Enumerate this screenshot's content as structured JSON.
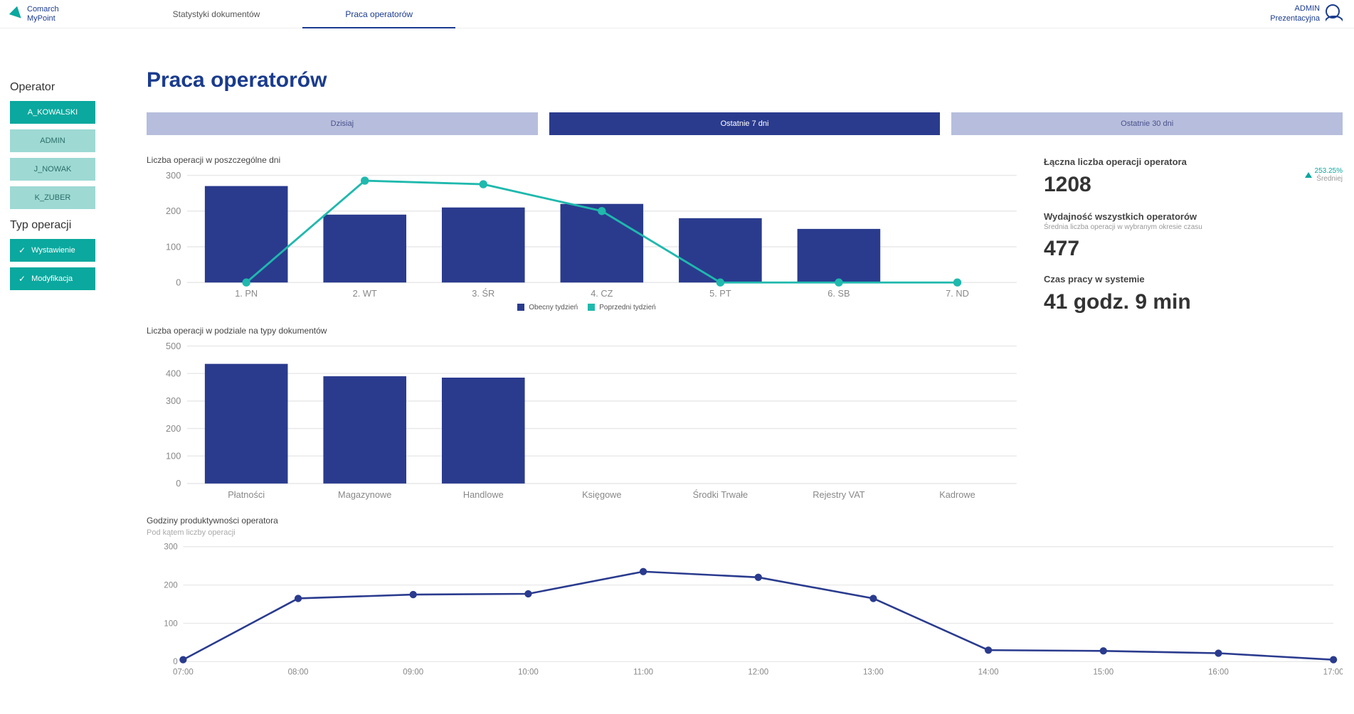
{
  "header": {
    "logo_line1": "Comarch",
    "logo_line2": "MyPoint",
    "tabs": [
      {
        "label": "Statystyki dokumentów",
        "active": false
      },
      {
        "label": "Praca operatorów",
        "active": true
      }
    ],
    "user_line1": "ADMIN",
    "user_line2": "Prezentacyjna"
  },
  "sidebar": {
    "operator_title": "Operator",
    "operators": [
      {
        "label": "A_KOWALSKI",
        "selected": true
      },
      {
        "label": "ADMIN",
        "selected": false
      },
      {
        "label": "J_NOWAK",
        "selected": false
      },
      {
        "label": "K_ZUBER",
        "selected": false
      }
    ],
    "op_type_title": "Typ operacji",
    "op_types": [
      {
        "label": "Wystawienie",
        "selected": true
      },
      {
        "label": "Modyfikacja",
        "selected": true
      }
    ]
  },
  "page": {
    "title": "Praca operatorów",
    "periods": [
      {
        "label": "Dzisiaj",
        "active": false
      },
      {
        "label": "Ostatnie 7 dni",
        "active": true
      },
      {
        "label": "Ostatnie 30 dni",
        "active": false
      }
    ]
  },
  "colors": {
    "bar": "#2a3b8e",
    "line_green": "#1fb9ad",
    "line_blue": "#2a3b8e",
    "grid": "#e8e8e8",
    "axis_text": "#888888"
  },
  "chart1": {
    "title": "Liczba operacji w poszczególne dni",
    "categories": [
      "1. PN",
      "2. WT",
      "3. ŚR",
      "4. CZ",
      "5. PT",
      "6. SB",
      "7. ND"
    ],
    "bars": [
      270,
      190,
      210,
      220,
      180,
      150,
      0
    ],
    "line": [
      0,
      285,
      275,
      200,
      0,
      0,
      0
    ],
    "ylim": [
      0,
      300
    ],
    "ytick": 100,
    "legend": [
      {
        "label": "Obecny tydzień",
        "color": "#2a3b8e"
      },
      {
        "label": "Poprzedni tydzień",
        "color": "#1fb9ad"
      }
    ]
  },
  "chart2": {
    "title": "Liczba operacji w podziale na typy dokumentów",
    "categories": [
      "Płatności",
      "Magazynowe",
      "Handlowe",
      "Księgowe",
      "Środki Trwałe",
      "Rejestry VAT",
      "Kadrowe"
    ],
    "bars": [
      435,
      390,
      385,
      0,
      0,
      0,
      0
    ],
    "ylim": [
      0,
      500
    ],
    "ytick": 100
  },
  "chart3": {
    "title": "Godziny produktywności operatora",
    "subtitle": "Pod kątem liczby operacji",
    "categories": [
      "07:00",
      "08:00",
      "09:00",
      "10:00",
      "11:00",
      "12:00",
      "13:00",
      "14:00",
      "15:00",
      "16:00",
      "17:00"
    ],
    "line": [
      5,
      165,
      175,
      177,
      235,
      220,
      165,
      30,
      28,
      22,
      5
    ],
    "ylim": [
      0,
      300
    ],
    "ytick": 100
  },
  "stats": {
    "s1_label": "Łączna liczba operacji operatora",
    "s1_value": "1208",
    "s1_trend_pct": "253.25%",
    "s1_trend_sub": "Średniej",
    "s2_label": "Wydajność wszystkich operatorów",
    "s2_sub": "Średnia liczba operacji w wybranym okresie czasu",
    "s2_value": "477",
    "s3_label": "Czas pracy w systemie",
    "s3_value": "41 godz. 9 min"
  }
}
